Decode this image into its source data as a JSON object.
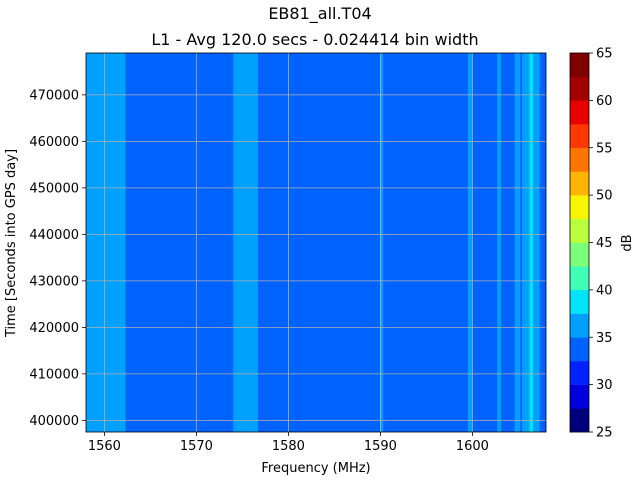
{
  "chart_data": {
    "type": "heatmap",
    "title": "EB81_all.T04",
    "subtitle": "L1 - Avg 120.0 secs - 0.024414 bin width",
    "xlabel": "Frequency (MHz)",
    "ylabel": "Time [Seconds into GPS day]",
    "xlim": [
      1558,
      1608
    ],
    "ylim": [
      397500,
      479000
    ],
    "x_ticks": [
      1560,
      1570,
      1580,
      1590,
      1600
    ],
    "x_tick_labels": [
      "1560",
      "1570",
      "1580",
      "1590",
      "1600"
    ],
    "y_ticks": [
      400000,
      410000,
      420000,
      430000,
      440000,
      450000,
      460000,
      470000
    ],
    "y_tick_labels": [
      "400000",
      "410000",
      "420000",
      "430000",
      "440000",
      "450000",
      "460000",
      "470000"
    ],
    "grid": true,
    "colorbar": {
      "label": "dB",
      "levels": [
        25,
        27.5,
        30,
        32.5,
        35,
        37.5,
        40,
        42.5,
        45,
        47.5,
        50,
        52.5,
        55,
        57.5,
        60,
        62.5,
        65
      ],
      "tick_values": [
        25,
        30,
        35,
        40,
        45,
        50,
        55,
        60,
        65
      ],
      "tick_labels": [
        "25",
        "30",
        "35",
        "40",
        "45",
        "50",
        "55",
        "60",
        "65"
      ],
      "colors": [
        "#00007f",
        "#0000dd",
        "#0022ff",
        "#0062ff",
        "#00a0ff",
        "#00e4f8",
        "#40ffb7",
        "#7dff7a",
        "#baff3c",
        "#f8f500",
        "#ffb400",
        "#ff7500",
        "#ff3800",
        "#e80000",
        "#a50000",
        "#7f0000"
      ]
    },
    "background_db": 33.5,
    "bands": [
      {
        "x_start": 1558,
        "x_end": 1562.3,
        "db": 36
      },
      {
        "x_start": 1574.0,
        "x_end": 1576.7,
        "db": 36
      },
      {
        "x_start": 1590.0,
        "x_end": 1590.3,
        "db": 36
      },
      {
        "x_start": 1599.5,
        "x_end": 1600.0,
        "db": 36
      },
      {
        "x_start": 1602.7,
        "x_end": 1603.1,
        "db": 36
      },
      {
        "x_start": 1604.6,
        "x_end": 1605.2,
        "db": 36
      },
      {
        "x_start": 1605.4,
        "x_end": 1606.2,
        "db": 36
      },
      {
        "x_start": 1606.2,
        "x_end": 1606.6,
        "db": 38.5
      },
      {
        "x_start": 1606.6,
        "x_end": 1607.3,
        "db": 36
      }
    ]
  }
}
